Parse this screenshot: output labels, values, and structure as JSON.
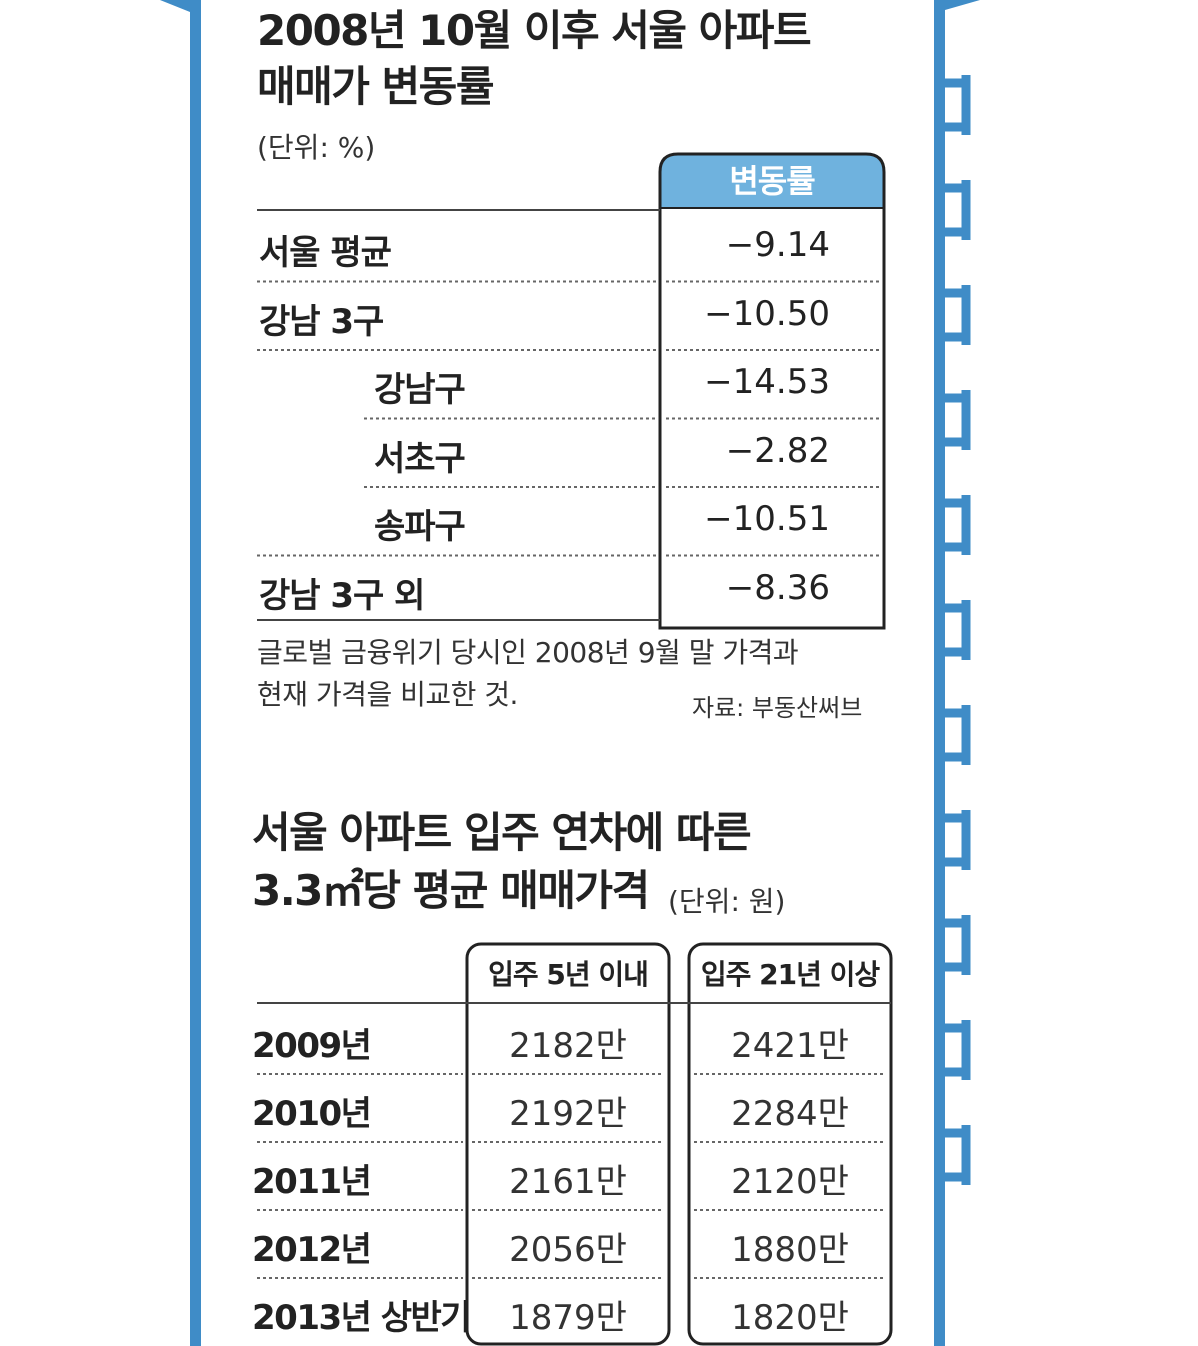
{
  "colors": {
    "frame_blue": "#3f8cc7",
    "header_blue": "#6fb2de",
    "text": "#222222"
  },
  "chart_data": [
    {
      "type": "table",
      "title_line1": "2008년 10월 이후 서울 아파트",
      "title_line2": "매매가 변동률",
      "unit": "(단위: %)",
      "column_header": "변동률",
      "rows": [
        {
          "label": "서울 평균",
          "value": "−9.14",
          "indent": false
        },
        {
          "label": "강남 3구",
          "value": "−10.50",
          "indent": false
        },
        {
          "label": "강남구",
          "value": "−14.53",
          "indent": true
        },
        {
          "label": "서초구",
          "value": "−2.82",
          "indent": true
        },
        {
          "label": "송파구",
          "value": "−10.51",
          "indent": true
        },
        {
          "label": "강남 3구 외",
          "value": "−8.36",
          "indent": false
        }
      ],
      "note_line1": "글로벌 금융위기 당시인 2008년 9월 말 가격과",
      "note_line2": "현재 가격을 비교한 것.",
      "source": "자료: 부동산써브"
    },
    {
      "type": "table",
      "title_line1": "서울 아파트 입주 연차에 따른",
      "title_line2": "3.3㎡당 평균 매매가격",
      "unit": "(단위: 원)",
      "columns": [
        "입주 5년 이내",
        "입주 21년 이상"
      ],
      "rows": [
        {
          "label": "2009년",
          "values": [
            "2182만",
            "2421만"
          ]
        },
        {
          "label": "2010년",
          "values": [
            "2192만",
            "2284만"
          ]
        },
        {
          "label": "2011년",
          "values": [
            "2161만",
            "2120만"
          ]
        },
        {
          "label": "2012년",
          "values": [
            "2056만",
            "1880만"
          ]
        },
        {
          "label": "2013년 상반기",
          "values": [
            "1879만",
            "1820만"
          ]
        }
      ]
    }
  ]
}
